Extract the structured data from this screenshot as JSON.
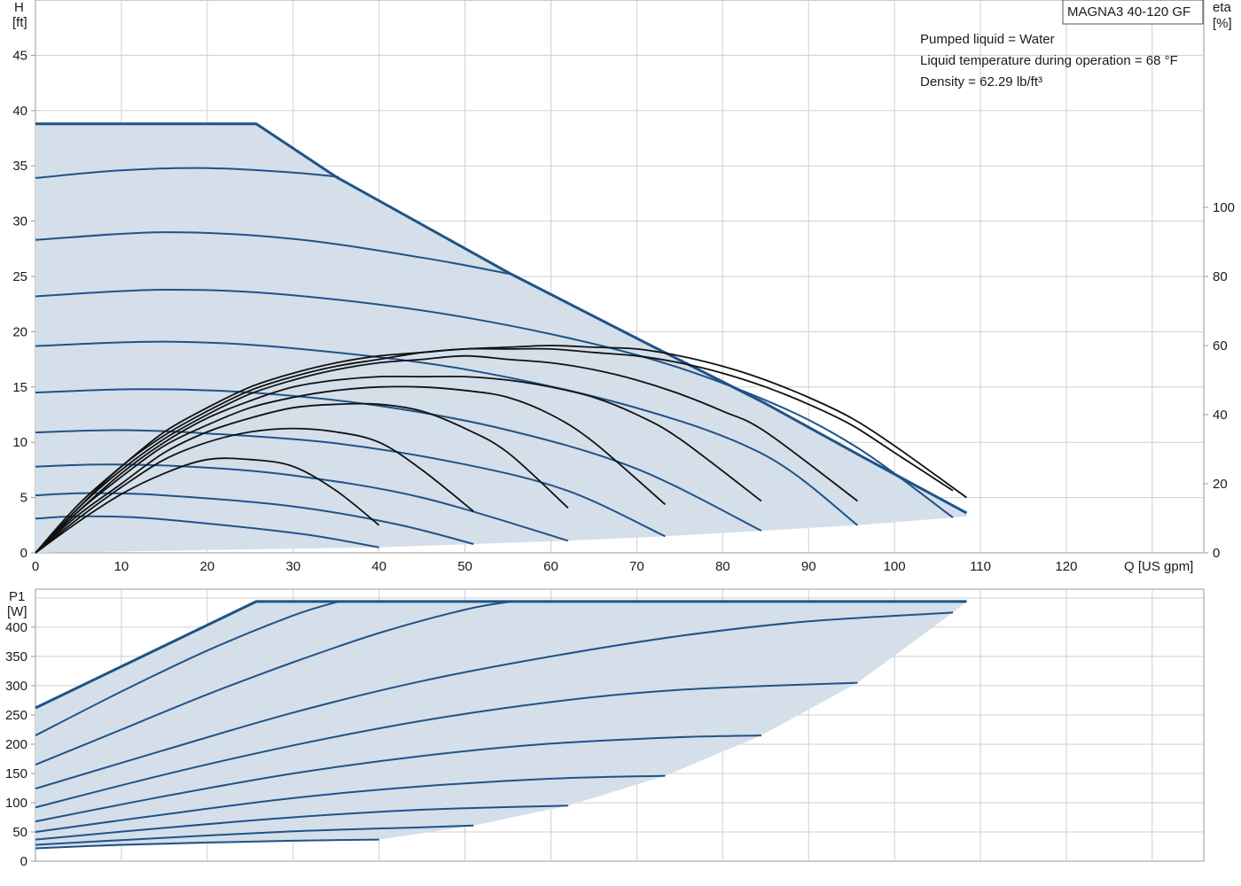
{
  "colors": {
    "curve": "#1f5387",
    "eff": "#111111",
    "fill": "#d4dfea",
    "grid": "#cfcfcf",
    "axis": "#999999"
  },
  "title_box": "MAGNA3 40-120 GF",
  "info": [
    "Pumped liquid = Water",
    "Liquid temperature during operation = 68 °F",
    "Density = 62.29 lb/ft³"
  ],
  "chart_data": [
    {
      "type": "line",
      "title": "",
      "xlabel": "Q [US gpm]",
      "ylabel_left": [
        "H",
        "[ft]"
      ],
      "ylabel_right": [
        "eta",
        "[%]"
      ],
      "xlim": [
        0,
        136
      ],
      "ylim": [
        0,
        50
      ],
      "ylim_right": [
        0,
        160
      ],
      "x_ticks": [
        0,
        10,
        20,
        30,
        40,
        50,
        60,
        70,
        80,
        90,
        100,
        110,
        120
      ],
      "y_ticks": [
        0,
        5,
        10,
        15,
        20,
        25,
        30,
        35,
        40,
        45
      ],
      "y_ticks_right": [
        0,
        20,
        40,
        60,
        80,
        100
      ],
      "grid": true,
      "max_curve": {
        "x": [
          0,
          25.7,
          35,
          55.4,
          70,
          85,
          96,
          108.4
        ],
        "y": [
          38.8,
          38.8,
          34,
          25.2,
          19.4,
          13.5,
          8.8,
          3.6
        ]
      },
      "min_curve": {
        "x": [
          40,
          51,
          62,
          73.3,
          84.5,
          95.7,
          106.8,
          108.4
        ],
        "y": [
          0.5,
          0.8,
          1.1,
          1.5,
          2.0,
          2.5,
          3.2,
          3.3
        ]
      },
      "head_curves": [
        {
          "x": [
            0,
            10,
            20,
            30,
            35.3
          ],
          "y": [
            33.9,
            34.6,
            34.8,
            34.4,
            34.0
          ]
        },
        {
          "x": [
            0,
            15,
            30,
            45,
            55.4
          ],
          "y": [
            28.3,
            29.0,
            28.4,
            26.7,
            25.2
          ]
        },
        {
          "x": [
            0,
            15,
            30,
            50,
            70,
            85,
            95.7,
            106.8
          ],
          "y": [
            23.2,
            23.8,
            23.3,
            21.3,
            17.9,
            13.8,
            9.5,
            3.2
          ]
        },
        {
          "x": [
            0,
            15,
            30,
            50,
            70,
            85,
            95.7
          ],
          "y": [
            18.7,
            19.1,
            18.5,
            16.6,
            13.1,
            8.8,
            2.5
          ]
        },
        {
          "x": [
            0,
            12,
            25,
            40,
            55,
            70,
            84.5
          ],
          "y": [
            14.5,
            14.8,
            14.5,
            13.3,
            11.1,
            7.6,
            2.0
          ]
        },
        {
          "x": [
            0,
            10,
            20,
            35,
            50,
            62,
            73.3
          ],
          "y": [
            10.9,
            11.1,
            10.8,
            9.9,
            8.0,
            5.6,
            1.5
          ]
        },
        {
          "x": [
            0,
            8,
            18,
            30,
            45,
            62
          ],
          "y": [
            7.8,
            8.0,
            7.8,
            7.0,
            5.0,
            1.1
          ]
        },
        {
          "x": [
            0,
            6,
            15,
            30,
            42,
            51
          ],
          "y": [
            5.2,
            5.4,
            5.2,
            4.2,
            2.6,
            0.8
          ]
        },
        {
          "x": [
            0,
            5,
            12,
            22,
            32,
            40
          ],
          "y": [
            3.1,
            3.3,
            3.2,
            2.5,
            1.6,
            0.5
          ]
        }
      ],
      "eff_curves": [
        {
          "x": [
            0,
            5,
            10,
            15,
            20,
            25,
            30,
            35,
            40
          ],
          "y": [
            0,
            9,
            17,
            23,
            27,
            27,
            25,
            18,
            8
          ]
        },
        {
          "x": [
            0,
            5,
            10,
            15,
            20,
            25,
            30,
            35,
            40,
            45,
            51
          ],
          "y": [
            0,
            10,
            19,
            27,
            32,
            35,
            36,
            35,
            32,
            24,
            12
          ]
        },
        {
          "x": [
            0,
            5,
            10,
            15,
            20,
            25,
            30,
            35,
            40,
            45,
            50,
            55,
            62
          ],
          "y": [
            0,
            11,
            20,
            29,
            35,
            39,
            42,
            43,
            43,
            41,
            36,
            29,
            13
          ]
        },
        {
          "x": [
            0,
            5,
            10,
            15,
            20,
            25,
            30,
            35,
            40,
            45,
            50,
            55,
            60,
            65,
            73.3
          ],
          "y": [
            0,
            12,
            22,
            31,
            37,
            42,
            45,
            47,
            48,
            48,
            47,
            45,
            40,
            32,
            14
          ]
        },
        {
          "x": [
            0,
            5,
            10,
            15,
            20,
            25,
            30,
            35,
            40,
            45,
            50,
            55,
            60,
            65,
            70,
            75,
            84.5
          ],
          "y": [
            0,
            12,
            23,
            32,
            39,
            44,
            48,
            50,
            51,
            51,
            51,
            50,
            48,
            45,
            40,
            33,
            15
          ]
        },
        {
          "x": [
            0,
            5,
            10,
            15,
            20,
            25,
            30,
            35,
            40,
            45,
            50,
            55,
            60,
            65,
            70,
            75,
            80,
            85,
            95.7
          ],
          "y": [
            0,
            13,
            24,
            33,
            40,
            46,
            50,
            53,
            55,
            56,
            57,
            56,
            55,
            53,
            50,
            46,
            41,
            35,
            15
          ]
        },
        {
          "x": [
            0,
            5,
            10,
            15,
            20,
            25,
            30,
            35,
            40,
            45,
            50,
            55,
            60,
            65,
            70,
            75,
            80,
            85,
            90,
            95,
            100,
            106.8
          ],
          "y": [
            0,
            13,
            25,
            34,
            41,
            47,
            51,
            54,
            56,
            58,
            59,
            59,
            59,
            58,
            57,
            55,
            52,
            48,
            43,
            37,
            29,
            18
          ]
        },
        {
          "x": [
            0,
            5,
            10,
            15,
            20,
            25,
            30,
            35,
            40,
            45,
            50,
            55,
            60,
            65,
            70,
            75,
            80,
            85,
            90,
            95,
            100,
            108.4
          ],
          "y": [
            0,
            14,
            25,
            35,
            42,
            48,
            52,
            55,
            57,
            58,
            59,
            59.5,
            60,
            59.5,
            59,
            57,
            54,
            50,
            45,
            39,
            31,
            16
          ]
        }
      ]
    },
    {
      "type": "line",
      "title": "",
      "xlabel": "",
      "ylabel": [
        "P1",
        "[W]"
      ],
      "xlim": [
        0,
        136
      ],
      "ylim": [
        0,
        465
      ],
      "y_ticks": [
        0,
        50,
        100,
        150,
        200,
        250,
        300,
        350,
        400
      ],
      "grid": true,
      "max_power": {
        "x": [
          0,
          25.7,
          108.4
        ],
        "y": [
          262,
          444,
          444
        ]
      },
      "min_power_boundary": {
        "x": [
          40,
          51,
          62,
          73.3,
          84.5,
          95.7,
          106.8
        ],
        "y": [
          37,
          61,
          95,
          146,
          215,
          305,
          425
        ]
      },
      "power_curves": [
        {
          "x": [
            0,
            10,
            20,
            30,
            35.3
          ],
          "y": [
            215,
            290,
            360,
            420,
            444
          ]
        },
        {
          "x": [
            0,
            10,
            20,
            30,
            40,
            50,
            55.4
          ],
          "y": [
            165,
            225,
            285,
            340,
            390,
            430,
            444
          ]
        },
        {
          "x": [
            0,
            15,
            30,
            45,
            60,
            75,
            90,
            106.8
          ],
          "y": [
            124,
            190,
            254,
            308,
            350,
            385,
            410,
            425
          ]
        },
        {
          "x": [
            0,
            15,
            30,
            45,
            60,
            75,
            95.7
          ],
          "y": [
            92,
            148,
            198,
            240,
            272,
            293,
            305
          ]
        },
        {
          "x": [
            0,
            15,
            30,
            45,
            60,
            75,
            84.5
          ],
          "y": [
            68,
            111,
            150,
            180,
            201,
            212,
            215
          ]
        },
        {
          "x": [
            0,
            15,
            30,
            45,
            60,
            73.3
          ],
          "y": [
            50,
            80,
            108,
            128,
            141,
            146
          ]
        },
        {
          "x": [
            0,
            15,
            30,
            45,
            62
          ],
          "y": [
            37,
            57,
            75,
            88,
            95
          ]
        },
        {
          "x": [
            0,
            15,
            30,
            45,
            51
          ],
          "y": [
            28,
            40,
            51,
            58,
            61
          ]
        },
        {
          "x": [
            0,
            10,
            20,
            30,
            40
          ],
          "y": [
            22,
            28,
            32,
            35,
            37
          ]
        }
      ]
    }
  ]
}
